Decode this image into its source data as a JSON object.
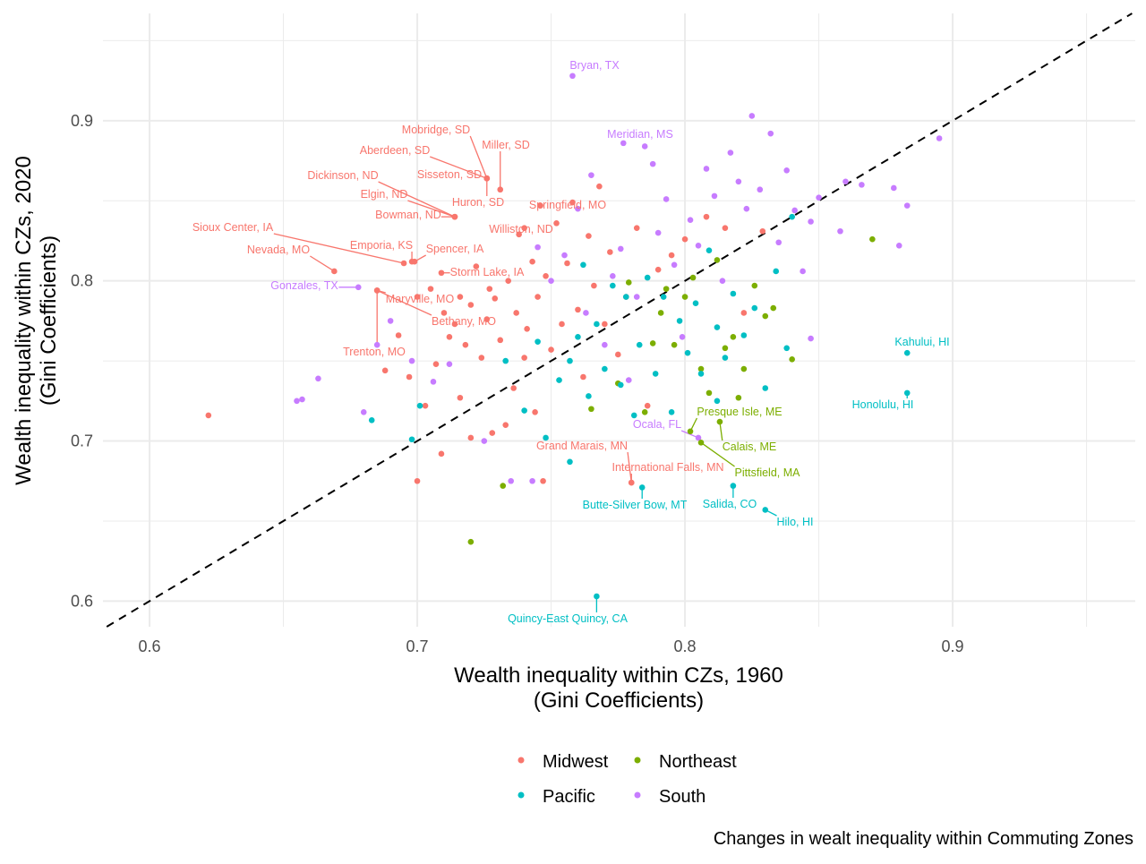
{
  "chart_data": {
    "type": "scatter",
    "xlabel": "Wealth inequality within CZs, 1960\n(Gini Coefficients)",
    "ylabel": "Wealth inequality within CZs, 2020\n(Gini Coefficients)",
    "caption": "Changes in wealt inequality within Commuting Zones",
    "xlim": [
      0.5826,
      0.9682
    ],
    "ylim": [
      0.584,
      0.967
    ],
    "xticks": [
      "0.6",
      "0.7",
      "0.8",
      "0.9"
    ],
    "yticks": [
      "0.6",
      "0.7",
      "0.8",
      "0.9"
    ],
    "grid": true,
    "reference_line": {
      "type": "identity",
      "style": "dashed",
      "color": "#000000"
    },
    "legend": {
      "placement": "bottom",
      "entries": [
        "Midwest",
        "Northeast",
        "Pacific",
        "South"
      ]
    },
    "colors": {
      "Midwest": "#F8766D",
      "Northeast": "#7CAE00",
      "Pacific": "#00BFC4",
      "South": "#C77CFF"
    },
    "series": [
      {
        "name": "Midwest",
        "points": [
          [
            0.622,
            0.716
          ],
          [
            0.688,
            0.744
          ],
          [
            0.693,
            0.766
          ],
          [
            0.697,
            0.74
          ],
          [
            0.7,
            0.79
          ],
          [
            0.703,
            0.722
          ],
          [
            0.705,
            0.795
          ],
          [
            0.707,
            0.748
          ],
          [
            0.709,
            0.692
          ],
          [
            0.71,
            0.78
          ],
          [
            0.712,
            0.765
          ],
          [
            0.714,
            0.773
          ],
          [
            0.716,
            0.727
          ],
          [
            0.718,
            0.76
          ],
          [
            0.72,
            0.702
          ],
          [
            0.72,
            0.785
          ],
          [
            0.722,
            0.809
          ],
          [
            0.724,
            0.752
          ],
          [
            0.726,
            0.776
          ],
          [
            0.728,
            0.705
          ],
          [
            0.729,
            0.789
          ],
          [
            0.731,
            0.763
          ],
          [
            0.733,
            0.71
          ],
          [
            0.734,
            0.8
          ],
          [
            0.736,
            0.733
          ],
          [
            0.737,
            0.78
          ],
          [
            0.738,
            0.829
          ],
          [
            0.74,
            0.752
          ],
          [
            0.741,
            0.77
          ],
          [
            0.743,
            0.812
          ],
          [
            0.744,
            0.718
          ],
          [
            0.745,
            0.79
          ],
          [
            0.747,
            0.675
          ],
          [
            0.748,
            0.803
          ],
          [
            0.75,
            0.757
          ],
          [
            0.752,
            0.836
          ],
          [
            0.754,
            0.773
          ],
          [
            0.756,
            0.811
          ],
          [
            0.758,
            0.849
          ],
          [
            0.76,
            0.782
          ],
          [
            0.762,
            0.74
          ],
          [
            0.764,
            0.828
          ],
          [
            0.766,
            0.797
          ],
          [
            0.768,
            0.859
          ],
          [
            0.77,
            0.773
          ],
          [
            0.772,
            0.818
          ],
          [
            0.775,
            0.754
          ],
          [
            0.778,
            0.79
          ],
          [
            0.782,
            0.833
          ],
          [
            0.786,
            0.722
          ],
          [
            0.79,
            0.807
          ],
          [
            0.795,
            0.816
          ],
          [
            0.8,
            0.826
          ],
          [
            0.808,
            0.84
          ],
          [
            0.815,
            0.833
          ],
          [
            0.822,
            0.78
          ],
          [
            0.829,
            0.831
          ],
          [
            0.7,
            0.675
          ],
          [
            0.727,
            0.795
          ],
          [
            0.716,
            0.79
          ]
        ]
      },
      {
        "name": "Northeast",
        "points": [
          [
            0.72,
            0.637
          ],
          [
            0.732,
            0.672
          ],
          [
            0.765,
            0.72
          ],
          [
            0.775,
            0.736
          ],
          [
            0.785,
            0.718
          ],
          [
            0.788,
            0.761
          ],
          [
            0.791,
            0.78
          ],
          [
            0.793,
            0.795
          ],
          [
            0.796,
            0.76
          ],
          [
            0.8,
            0.79
          ],
          [
            0.803,
            0.802
          ],
          [
            0.806,
            0.745
          ],
          [
            0.809,
            0.73
          ],
          [
            0.812,
            0.813
          ],
          [
            0.815,
            0.758
          ],
          [
            0.818,
            0.765
          ],
          [
            0.82,
            0.727
          ],
          [
            0.822,
            0.745
          ],
          [
            0.826,
            0.797
          ],
          [
            0.83,
            0.778
          ],
          [
            0.833,
            0.783
          ],
          [
            0.84,
            0.751
          ],
          [
            0.87,
            0.826
          ],
          [
            0.779,
            0.799
          ]
        ]
      },
      {
        "name": "Pacific",
        "points": [
          [
            0.683,
            0.713
          ],
          [
            0.698,
            0.701
          ],
          [
            0.701,
            0.722
          ],
          [
            0.733,
            0.75
          ],
          [
            0.74,
            0.719
          ],
          [
            0.745,
            0.762
          ],
          [
            0.748,
            0.702
          ],
          [
            0.753,
            0.738
          ],
          [
            0.757,
            0.687
          ],
          [
            0.76,
            0.765
          ],
          [
            0.762,
            0.81
          ],
          [
            0.764,
            0.728
          ],
          [
            0.767,
            0.773
          ],
          [
            0.77,
            0.745
          ],
          [
            0.773,
            0.797
          ],
          [
            0.776,
            0.735
          ],
          [
            0.778,
            0.79
          ],
          [
            0.781,
            0.716
          ],
          [
            0.783,
            0.76
          ],
          [
            0.786,
            0.802
          ],
          [
            0.789,
            0.742
          ],
          [
            0.792,
            0.79
          ],
          [
            0.795,
            0.718
          ],
          [
            0.798,
            0.775
          ],
          [
            0.801,
            0.755
          ],
          [
            0.804,
            0.786
          ],
          [
            0.806,
            0.742
          ],
          [
            0.809,
            0.819
          ],
          [
            0.812,
            0.771
          ],
          [
            0.815,
            0.752
          ],
          [
            0.818,
            0.792
          ],
          [
            0.822,
            0.766
          ],
          [
            0.826,
            0.783
          ],
          [
            0.83,
            0.733
          ],
          [
            0.834,
            0.806
          ],
          [
            0.838,
            0.758
          ],
          [
            0.84,
            0.84
          ],
          [
            0.812,
            0.725
          ],
          [
            0.757,
            0.75
          ]
        ]
      },
      {
        "name": "South",
        "points": [
          [
            0.655,
            0.725
          ],
          [
            0.657,
            0.726
          ],
          [
            0.663,
            0.739
          ],
          [
            0.68,
            0.718
          ],
          [
            0.685,
            0.76
          ],
          [
            0.69,
            0.775
          ],
          [
            0.698,
            0.75
          ],
          [
            0.706,
            0.737
          ],
          [
            0.712,
            0.748
          ],
          [
            0.725,
            0.7
          ],
          [
            0.735,
            0.675
          ],
          [
            0.743,
            0.675
          ],
          [
            0.745,
            0.821
          ],
          [
            0.75,
            0.8
          ],
          [
            0.755,
            0.816
          ],
          [
            0.76,
            0.845
          ],
          [
            0.763,
            0.78
          ],
          [
            0.765,
            0.866
          ],
          [
            0.77,
            0.76
          ],
          [
            0.773,
            0.803
          ],
          [
            0.776,
            0.82
          ],
          [
            0.779,
            0.738
          ],
          [
            0.782,
            0.79
          ],
          [
            0.785,
            0.884
          ],
          [
            0.788,
            0.873
          ],
          [
            0.79,
            0.83
          ],
          [
            0.793,
            0.851
          ],
          [
            0.796,
            0.81
          ],
          [
            0.799,
            0.765
          ],
          [
            0.802,
            0.838
          ],
          [
            0.805,
            0.822
          ],
          [
            0.808,
            0.87
          ],
          [
            0.811,
            0.853
          ],
          [
            0.814,
            0.8
          ],
          [
            0.817,
            0.88
          ],
          [
            0.82,
            0.862
          ],
          [
            0.823,
            0.845
          ],
          [
            0.825,
            0.903
          ],
          [
            0.828,
            0.857
          ],
          [
            0.832,
            0.892
          ],
          [
            0.835,
            0.824
          ],
          [
            0.838,
            0.869
          ],
          [
            0.841,
            0.844
          ],
          [
            0.844,
            0.806
          ],
          [
            0.847,
            0.837
          ],
          [
            0.85,
            0.852
          ],
          [
            0.858,
            0.831
          ],
          [
            0.86,
            0.862
          ],
          [
            0.866,
            0.86
          ],
          [
            0.878,
            0.858
          ],
          [
            0.88,
            0.822
          ],
          [
            0.883,
            0.847
          ],
          [
            0.895,
            0.889
          ],
          [
            0.847,
            0.764
          ]
        ]
      }
    ],
    "labeled_points": [
      {
        "label": "Bryan, TX",
        "region": "South",
        "x": 0.758,
        "y": 0.928
      },
      {
        "label": "Meridian, MS",
        "region": "South",
        "x": 0.777,
        "y": 0.886
      },
      {
        "label": "Mobridge, SD",
        "region": "Midwest",
        "x": 0.726,
        "y": 0.864
      },
      {
        "label": "Miller, SD",
        "region": "Midwest",
        "x": 0.731,
        "y": 0.857
      },
      {
        "label": "Aberdeen, SD",
        "region": "Midwest",
        "x": 0.726,
        "y": 0.864
      },
      {
        "label": "Sisseton, SD",
        "region": "Midwest",
        "x": 0.726,
        "y": 0.864
      },
      {
        "label": "Huron, SD",
        "region": "Midwest",
        "x": 0.726,
        "y": 0.864
      },
      {
        "label": "Dickinson, ND",
        "region": "Midwest",
        "x": 0.714,
        "y": 0.84
      },
      {
        "label": "Elgin, ND",
        "region": "Midwest",
        "x": 0.714,
        "y": 0.84
      },
      {
        "label": "Bowman, ND",
        "region": "Midwest",
        "x": 0.714,
        "y": 0.84
      },
      {
        "label": "Springfield, MO",
        "region": "Midwest",
        "x": 0.746,
        "y": 0.847
      },
      {
        "label": "Williston, ND",
        "region": "Midwest",
        "x": 0.74,
        "y": 0.833
      },
      {
        "label": "Sioux Center, IA",
        "region": "Midwest",
        "x": 0.695,
        "y": 0.811
      },
      {
        "label": "Emporia, KS",
        "region": "Midwest",
        "x": 0.698,
        "y": 0.812
      },
      {
        "label": "Spencer, IA",
        "region": "Midwest",
        "x": 0.699,
        "y": 0.812
      },
      {
        "label": "Storm Lake, IA",
        "region": "Midwest",
        "x": 0.709,
        "y": 0.805
      },
      {
        "label": "Nevada, MO",
        "region": "Midwest",
        "x": 0.669,
        "y": 0.806
      },
      {
        "label": "Gonzales, TX",
        "region": "South",
        "x": 0.678,
        "y": 0.796
      },
      {
        "label": "Maryville, MO",
        "region": "Midwest",
        "x": 0.685,
        "y": 0.794
      },
      {
        "label": "Bethany, MO",
        "region": "Midwest",
        "x": 0.685,
        "y": 0.794
      },
      {
        "label": "Trenton, MO",
        "region": "Midwest",
        "x": 0.685,
        "y": 0.794
      },
      {
        "label": "Kahului, HI",
        "region": "Pacific",
        "x": 0.883,
        "y": 0.755
      },
      {
        "label": "Honolulu, HI",
        "region": "Pacific",
        "x": 0.883,
        "y": 0.73
      },
      {
        "label": "Presque Isle, ME",
        "region": "Northeast",
        "x": 0.802,
        "y": 0.706
      },
      {
        "label": "Calais, ME",
        "region": "Northeast",
        "x": 0.813,
        "y": 0.712
      },
      {
        "label": "Ocala, FL",
        "region": "South",
        "x": 0.805,
        "y": 0.702
      },
      {
        "label": "Pittsfield, MA",
        "region": "Northeast",
        "x": 0.806,
        "y": 0.699
      },
      {
        "label": "Grand Marais, MN",
        "region": "Midwest",
        "x": 0.78,
        "y": 0.674
      },
      {
        "label": "International Falls, MN",
        "region": "Midwest",
        "x": 0.78,
        "y": 0.674
      },
      {
        "label": "Butte-Silver Bow, MT",
        "region": "Pacific",
        "x": 0.784,
        "y": 0.671
      },
      {
        "label": "Salida, CO",
        "region": "Pacific",
        "x": 0.818,
        "y": 0.672
      },
      {
        "label": "Hilo, HI",
        "region": "Pacific",
        "x": 0.83,
        "y": 0.657
      },
      {
        "label": "Quincy-East Quincy, CA",
        "region": "Pacific",
        "x": 0.767,
        "y": 0.603
      }
    ]
  }
}
